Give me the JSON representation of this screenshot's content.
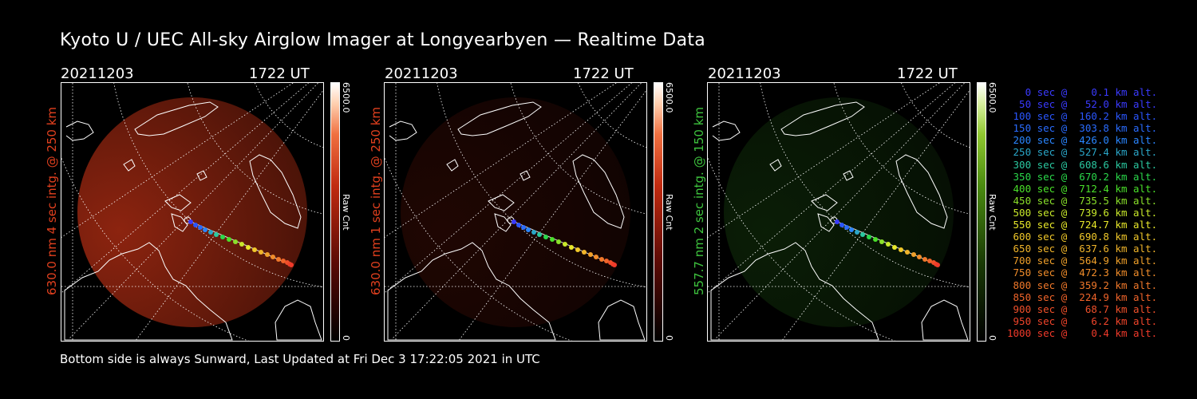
{
  "title": "Kyoto U / UEC All-sky Airglow Imager at Longyearbyen — Realtime Data",
  "footer": "Bottom side is always Sunward, Last Updated at Fri Dec  3 17:22:05 2021 in UTC",
  "panels": [
    {
      "date": "20211203",
      "time": "1722 UT",
      "ylabel": "630.0 nm 4 sec intg. @ 250 km",
      "color": "#e2401e",
      "cb_max": "6500.0",
      "cb_unit": "Raw Cnt",
      "cb_min": "0",
      "airglow_color": "#a52a12",
      "airglow_level": 0.85
    },
    {
      "date": "20211203",
      "time": "1722 UT",
      "ylabel": "630.0 nm 1 sec intg. @ 250 km",
      "color": "#e2401e",
      "cb_max": "6500.0",
      "cb_unit": "Raw Cnt",
      "cb_min": "0",
      "airglow_color": "#5a1208",
      "airglow_level": 0.35
    },
    {
      "date": "20211203",
      "time": "1722 UT",
      "ylabel": "557.7 nm 2 sec intg. @ 150 km",
      "color": "#3ec43e",
      "cb_max": "6500.0",
      "cb_unit": "Raw Cnt",
      "cb_min": "0",
      "airglow_color": "#1a4a10",
      "airglow_level": 0.4
    }
  ],
  "legend": [
    {
      "text": "   0 sec @    0.1 km alt.",
      "color": "#3a3aff"
    },
    {
      "text": "  50 sec @   52.0 km alt.",
      "color": "#3a3aff"
    },
    {
      "text": " 100 sec @  160.2 km alt.",
      "color": "#2a56ff"
    },
    {
      "text": " 150 sec @  303.8 km alt.",
      "color": "#2a6cff"
    },
    {
      "text": " 200 sec @  426.0 km alt.",
      "color": "#2a86ff"
    },
    {
      "text": " 250 sec @  527.4 km alt.",
      "color": "#2aa6c8"
    },
    {
      "text": " 300 sec @  608.6 km alt.",
      "color": "#2ac8a0"
    },
    {
      "text": " 350 sec @  670.2 km alt.",
      "color": "#2ad84a"
    },
    {
      "text": " 400 sec @  712.4 km alt.",
      "color": "#4ae02a"
    },
    {
      "text": " 450 sec @  735.5 km alt.",
      "color": "#8ae02a"
    },
    {
      "text": " 500 sec @  739.6 km alt.",
      "color": "#c8e82a"
    },
    {
      "text": " 550 sec @  724.7 km alt.",
      "color": "#e8e82a"
    },
    {
      "text": " 600 sec @  690.8 km alt.",
      "color": "#f0c82a"
    },
    {
      "text": " 650 sec @  637.6 km alt.",
      "color": "#f0b42a"
    },
    {
      "text": " 700 sec @  564.9 km alt.",
      "color": "#f0a02a"
    },
    {
      "text": " 750 sec @  472.3 km alt.",
      "color": "#f08c2a"
    },
    {
      "text": " 800 sec @  359.2 km alt.",
      "color": "#f0782a"
    },
    {
      "text": " 850 sec @  224.9 km alt.",
      "color": "#f0642a"
    },
    {
      "text": " 900 sec @   68.7 km alt.",
      "color": "#f0502a"
    },
    {
      "text": " 950 sec @    6.2 km alt.",
      "color": "#f0442a"
    },
    {
      "text": "1000 sec @    0.4 km alt.",
      "color": "#f03a2a"
    }
  ]
}
